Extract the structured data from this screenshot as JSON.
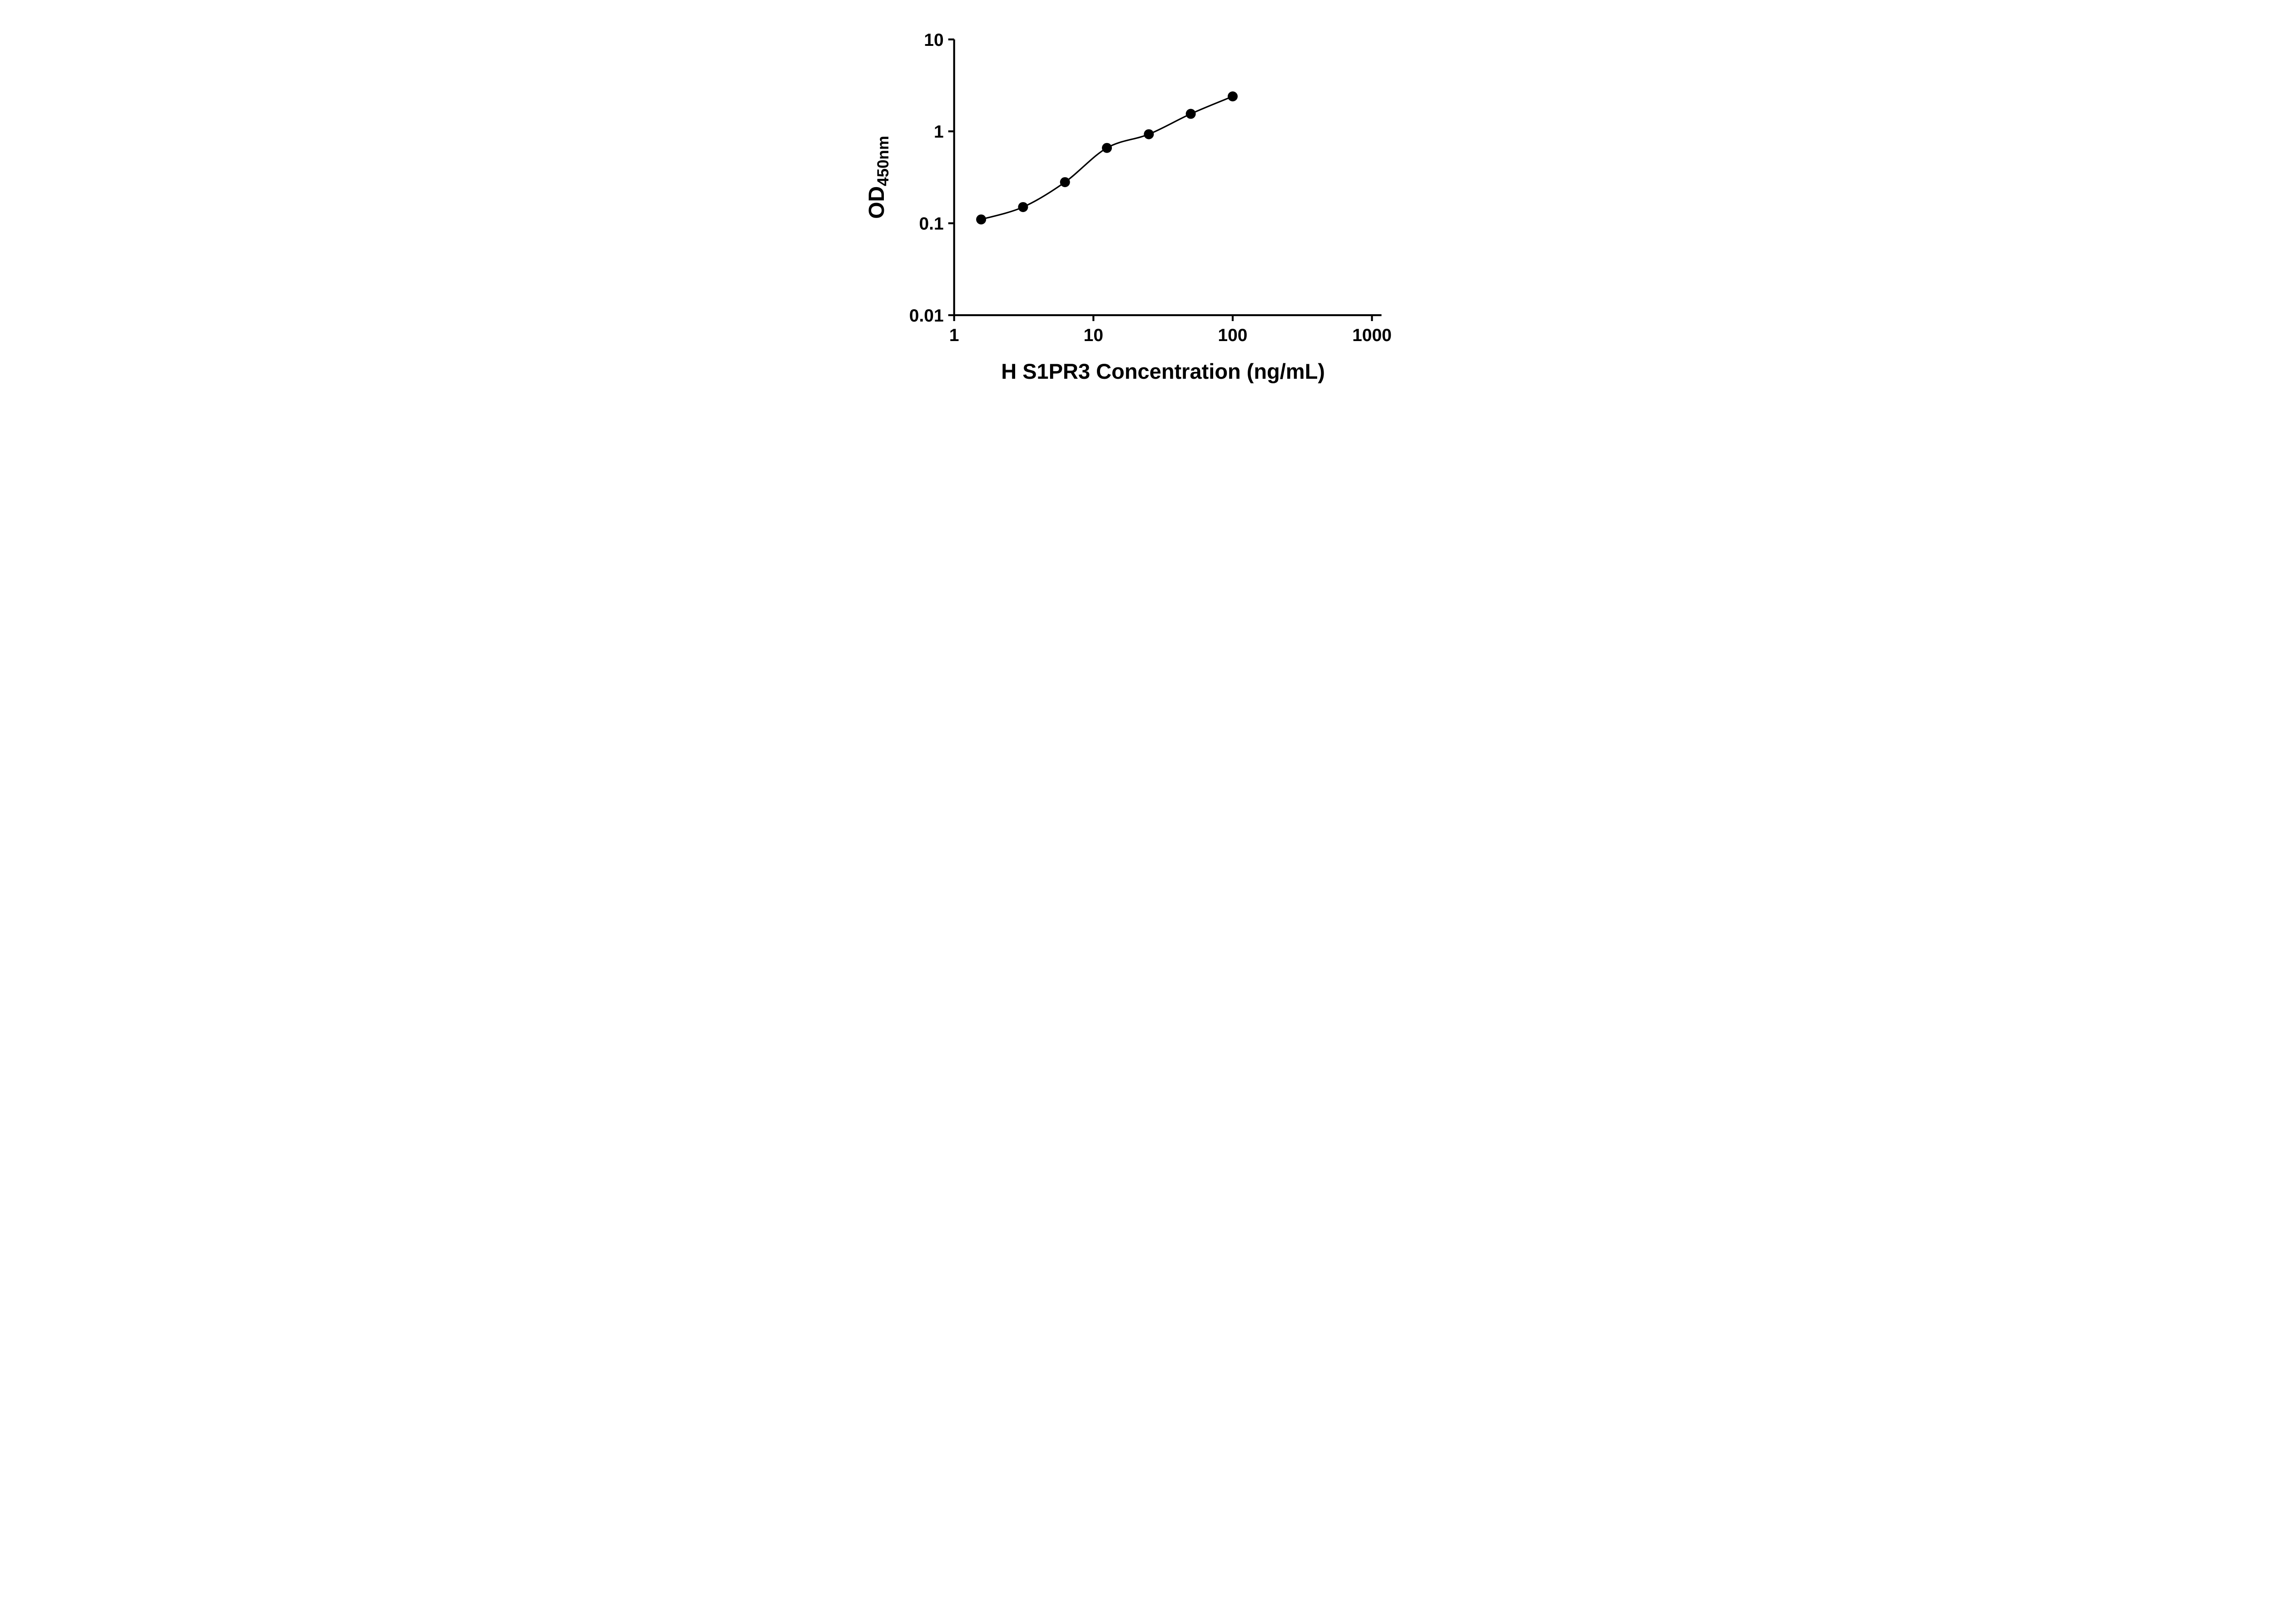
{
  "figure": {
    "kind": "elisa-standard-curve",
    "background": "#ffffff"
  },
  "chart_data": {
    "type": "scatter",
    "title": "",
    "xlabel": "H S1PR3 Concentration (ng/mL)",
    "ylabel_main": "OD",
    "ylabel_sub": "450nm",
    "x_scale": "log",
    "y_scale": "log",
    "xlim": [
      1,
      1000
    ],
    "ylim": [
      0.01,
      10
    ],
    "x_ticks": [
      1,
      10,
      100,
      1000
    ],
    "x_tick_labels": [
      "1",
      "10",
      "100",
      "1000"
    ],
    "y_ticks": [
      0.01,
      0.1,
      1,
      10
    ],
    "y_tick_labels": [
      "0.01",
      "0.1",
      "1",
      "10"
    ],
    "grid": false,
    "legend": "none",
    "series": [
      {
        "name": "standard-curve",
        "marker": "filled-circle",
        "marker_color": "#000000",
        "line_color": "#000000",
        "fit_line": true,
        "points": [
          {
            "x": 1.5625,
            "y": 0.11
          },
          {
            "x": 3.125,
            "y": 0.15
          },
          {
            "x": 6.25,
            "y": 0.28
          },
          {
            "x": 12.5,
            "y": 0.66
          },
          {
            "x": 25,
            "y": 0.93
          },
          {
            "x": 50,
            "y": 1.55
          },
          {
            "x": 100,
            "y": 2.4
          }
        ]
      }
    ],
    "colors": {
      "foreground": "#000000",
      "background": "#ffffff"
    }
  }
}
